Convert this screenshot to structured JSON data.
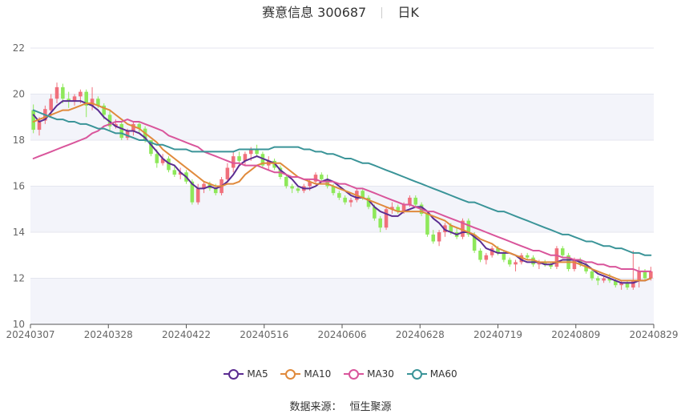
{
  "header": {
    "title": "赛意信息 300687",
    "period": "日K"
  },
  "source": {
    "label": "数据来源：",
    "value": "恒生聚源"
  },
  "chart_data": {
    "type": "candlestick",
    "title": "赛意信息 300687",
    "ylim": [
      10,
      22
    ],
    "yticks": [
      10,
      12,
      14,
      16,
      18,
      20,
      22
    ],
    "x_tick_labels": [
      "20240307",
      "20240328",
      "20240422",
      "20240516",
      "20240606",
      "20240628",
      "20240719",
      "20240809",
      "20240829"
    ],
    "grid": true,
    "legend_position": "bottom-center",
    "up_color": "#f0707c",
    "down_color": "#8ee85a",
    "candles_ohlc": [
      [
        19.3,
        19.55,
        18.3,
        18.45
      ],
      [
        18.45,
        19.0,
        18.2,
        18.85
      ],
      [
        18.85,
        19.5,
        18.7,
        19.35
      ],
      [
        19.3,
        20.0,
        19.0,
        19.8
      ],
      [
        19.8,
        20.5,
        19.6,
        20.3
      ],
      [
        20.3,
        20.45,
        19.6,
        19.8
      ],
      [
        19.8,
        20.1,
        19.4,
        19.7
      ],
      [
        19.7,
        20.0,
        19.5,
        19.9
      ],
      [
        19.9,
        20.2,
        19.6,
        20.1
      ],
      [
        20.1,
        20.2,
        19.0,
        19.5
      ],
      [
        19.5,
        20.3,
        19.3,
        19.8
      ],
      [
        19.8,
        19.9,
        19.4,
        19.5
      ],
      [
        19.5,
        19.6,
        18.9,
        19.1
      ],
      [
        19.1,
        19.3,
        18.4,
        18.6
      ],
      [
        18.6,
        18.9,
        18.5,
        18.7
      ],
      [
        18.7,
        18.8,
        18.0,
        18.1
      ],
      [
        18.1,
        18.5,
        18.0,
        18.4
      ],
      [
        18.4,
        18.8,
        18.2,
        18.7
      ],
      [
        18.7,
        18.8,
        18.3,
        18.5
      ],
      [
        18.5,
        18.6,
        17.9,
        18.0
      ],
      [
        18.0,
        18.0,
        17.3,
        17.4
      ],
      [
        17.4,
        17.6,
        16.8,
        17.0
      ],
      [
        17.0,
        17.4,
        16.9,
        17.2
      ],
      [
        17.2,
        17.3,
        16.6,
        16.7
      ],
      [
        16.7,
        16.9,
        16.4,
        16.5
      ],
      [
        16.5,
        16.8,
        16.3,
        16.6
      ],
      [
        16.6,
        16.7,
        16.1,
        16.2
      ],
      [
        16.2,
        16.3,
        15.2,
        15.3
      ],
      [
        15.3,
        16.1,
        15.2,
        15.9
      ],
      [
        15.9,
        16.2,
        15.7,
        16.1
      ],
      [
        16.1,
        16.2,
        15.8,
        15.9
      ],
      [
        15.9,
        16.1,
        15.6,
        15.7
      ],
      [
        15.7,
        16.4,
        15.6,
        16.3
      ],
      [
        16.3,
        17.0,
        16.2,
        16.8
      ],
      [
        16.8,
        17.5,
        16.6,
        17.3
      ],
      [
        17.3,
        17.5,
        17.0,
        17.1
      ],
      [
        17.1,
        17.5,
        16.9,
        17.4
      ],
      [
        17.4,
        17.7,
        17.1,
        17.6
      ],
      [
        17.6,
        17.8,
        17.3,
        17.4
      ],
      [
        17.4,
        17.5,
        16.8,
        16.9
      ],
      [
        16.9,
        17.3,
        16.7,
        17.1
      ],
      [
        17.1,
        17.2,
        16.7,
        16.8
      ],
      [
        16.8,
        16.9,
        16.3,
        16.4
      ],
      [
        16.4,
        16.5,
        15.9,
        16.0
      ],
      [
        16.0,
        16.1,
        15.7,
        15.9
      ],
      [
        15.9,
        16.0,
        15.7,
        15.8
      ],
      [
        15.8,
        16.1,
        15.7,
        16.0
      ],
      [
        16.0,
        16.3,
        15.8,
        16.2
      ],
      [
        16.2,
        16.6,
        16.1,
        16.5
      ],
      [
        16.5,
        16.6,
        16.2,
        16.3
      ],
      [
        16.3,
        16.5,
        15.9,
        16.0
      ],
      [
        16.0,
        16.1,
        15.6,
        15.7
      ],
      [
        15.7,
        15.8,
        15.4,
        15.5
      ],
      [
        15.5,
        15.6,
        15.2,
        15.3
      ],
      [
        15.3,
        15.5,
        15.1,
        15.4
      ],
      [
        15.4,
        15.9,
        15.3,
        15.8
      ],
      [
        15.8,
        15.9,
        15.4,
        15.5
      ],
      [
        15.5,
        15.6,
        15.0,
        15.1
      ],
      [
        15.1,
        15.2,
        14.5,
        14.6
      ],
      [
        14.6,
        14.7,
        14.0,
        14.2
      ],
      [
        14.2,
        15.1,
        14.1,
        15.0
      ],
      [
        15.0,
        15.3,
        14.8,
        15.1
      ],
      [
        15.1,
        15.2,
        14.8,
        14.9
      ],
      [
        14.9,
        15.3,
        14.8,
        15.2
      ],
      [
        15.2,
        15.6,
        15.1,
        15.5
      ],
      [
        15.5,
        15.6,
        15.1,
        15.2
      ],
      [
        15.2,
        15.3,
        14.7,
        14.8
      ],
      [
        14.8,
        14.9,
        13.8,
        13.9
      ],
      [
        13.9,
        14.1,
        13.5,
        13.6
      ],
      [
        13.6,
        14.1,
        13.4,
        14.0
      ],
      [
        14.0,
        14.4,
        13.8,
        14.3
      ],
      [
        14.3,
        14.4,
        13.9,
        14.0
      ],
      [
        14.0,
        14.2,
        13.7,
        13.8
      ],
      [
        13.8,
        14.6,
        13.7,
        14.5
      ],
      [
        14.5,
        14.6,
        13.8,
        13.9
      ],
      [
        13.9,
        14.0,
        13.1,
        13.2
      ],
      [
        13.2,
        13.3,
        12.7,
        12.8
      ],
      [
        12.8,
        13.1,
        12.6,
        13.0
      ],
      [
        13.0,
        13.4,
        12.9,
        13.3
      ],
      [
        13.3,
        13.4,
        13.0,
        13.1
      ],
      [
        13.1,
        13.2,
        12.7,
        12.8
      ],
      [
        12.8,
        12.9,
        12.5,
        12.6
      ],
      [
        12.6,
        12.8,
        12.3,
        12.7
      ],
      [
        12.7,
        13.1,
        12.6,
        13.0
      ],
      [
        13.0,
        13.1,
        12.8,
        12.9
      ],
      [
        12.9,
        13.0,
        12.5,
        12.6
      ],
      [
        12.6,
        12.8,
        12.4,
        12.7
      ],
      [
        12.7,
        12.8,
        12.5,
        12.6
      ],
      [
        12.6,
        12.7,
        12.4,
        12.5
      ],
      [
        12.5,
        13.4,
        12.4,
        13.3
      ],
      [
        13.3,
        13.4,
        12.9,
        13.0
      ],
      [
        13.0,
        13.1,
        12.3,
        12.4
      ],
      [
        12.4,
        12.9,
        12.3,
        12.8
      ],
      [
        12.8,
        12.9,
        12.5,
        12.6
      ],
      [
        12.6,
        12.7,
        12.2,
        12.3
      ],
      [
        12.3,
        12.4,
        11.9,
        12.0
      ],
      [
        12.0,
        12.1,
        11.7,
        11.9
      ],
      [
        11.9,
        12.1,
        11.8,
        12.0
      ],
      [
        12.0,
        12.2,
        11.8,
        11.9
      ],
      [
        11.9,
        12.0,
        11.6,
        11.7
      ],
      [
        11.7,
        11.9,
        11.5,
        11.8
      ],
      [
        11.8,
        11.9,
        11.5,
        11.6
      ],
      [
        11.6,
        13.2,
        11.5,
        11.9
      ],
      [
        11.9,
        12.5,
        11.6,
        12.3
      ],
      [
        12.3,
        12.4,
        11.9,
        12.0
      ],
      [
        12.0,
        12.5,
        11.9,
        12.3
      ]
    ],
    "series": [
      {
        "name": "MA5",
        "color": "#5b2c91",
        "values": [
          19.1,
          18.8,
          18.9,
          19.2,
          19.5,
          19.7,
          19.7,
          19.7,
          19.7,
          19.6,
          19.5,
          19.3,
          19.0,
          18.8,
          18.6,
          18.5,
          18.4,
          18.4,
          18.3,
          18.1,
          17.8,
          17.5,
          17.2,
          17.0,
          16.9,
          16.6,
          16.4,
          16.1,
          15.9,
          15.9,
          16.0,
          15.9,
          16.0,
          16.2,
          16.5,
          16.9,
          17.1,
          17.2,
          17.3,
          17.2,
          17.1,
          17.0,
          16.7,
          16.5,
          16.3,
          16.0,
          15.9,
          15.9,
          16.0,
          16.2,
          16.3,
          16.2,
          16.0,
          15.8,
          15.6,
          15.5,
          15.5,
          15.4,
          15.1,
          14.9,
          14.8,
          14.7,
          14.7,
          14.9,
          15.0,
          15.1,
          15.1,
          14.9,
          14.6,
          14.4,
          14.1,
          14.0,
          13.9,
          14.0,
          14.0,
          13.8,
          13.6,
          13.3,
          13.2,
          13.1,
          13.1,
          13.1,
          13.0,
          12.8,
          12.7,
          12.7,
          12.7,
          12.6,
          12.6,
          12.7,
          12.8,
          12.8,
          12.8,
          12.7,
          12.6,
          12.4,
          12.2,
          12.1,
          12.0,
          11.9,
          11.8,
          11.8,
          11.8,
          11.9,
          11.9,
          12.0
        ]
      },
      {
        "name": "MA10",
        "color": "#e08a3c",
        "values": [
          18.8,
          18.9,
          19.0,
          19.1,
          19.2,
          19.3,
          19.3,
          19.4,
          19.5,
          19.6,
          19.6,
          19.5,
          19.4,
          19.3,
          19.1,
          18.9,
          18.7,
          18.6,
          18.5,
          18.3,
          18.1,
          17.9,
          17.6,
          17.4,
          17.2,
          17.0,
          16.8,
          16.6,
          16.4,
          16.2,
          16.1,
          16.0,
          16.0,
          16.1,
          16.1,
          16.2,
          16.5,
          16.7,
          16.9,
          17.0,
          17.0,
          17.0,
          17.0,
          16.8,
          16.6,
          16.4,
          16.3,
          16.2,
          16.1,
          16.1,
          16.1,
          16.0,
          15.9,
          15.8,
          15.7,
          15.6,
          15.5,
          15.4,
          15.3,
          15.2,
          15.1,
          15.0,
          14.9,
          14.9,
          14.9,
          14.9,
          14.9,
          14.8,
          14.7,
          14.6,
          14.5,
          14.3,
          14.2,
          14.1,
          14.0,
          13.9,
          13.7,
          13.6,
          13.5,
          13.3,
          13.2,
          13.1,
          13.0,
          12.9,
          12.8,
          12.8,
          12.7,
          12.7,
          12.7,
          12.7,
          12.7,
          12.7,
          12.7,
          12.6,
          12.5,
          12.4,
          12.3,
          12.2,
          12.1,
          12.0,
          11.9,
          11.9,
          11.9,
          11.9,
          11.9,
          12.0
        ]
      },
      {
        "name": "MA30",
        "color": "#d9559b",
        "values": [
          17.2,
          17.3,
          17.4,
          17.5,
          17.6,
          17.7,
          17.8,
          17.9,
          18.0,
          18.1,
          18.3,
          18.4,
          18.6,
          18.7,
          18.8,
          18.8,
          18.9,
          18.8,
          18.8,
          18.7,
          18.6,
          18.5,
          18.4,
          18.2,
          18.1,
          18.0,
          17.9,
          17.8,
          17.7,
          17.5,
          17.4,
          17.3,
          17.2,
          17.1,
          17.0,
          17.0,
          16.9,
          16.9,
          16.9,
          16.8,
          16.7,
          16.6,
          16.6,
          16.5,
          16.4,
          16.4,
          16.3,
          16.3,
          16.3,
          16.2,
          16.2,
          16.2,
          16.1,
          16.1,
          16.0,
          15.9,
          15.9,
          15.8,
          15.7,
          15.6,
          15.5,
          15.4,
          15.3,
          15.2,
          15.2,
          15.1,
          15.0,
          14.9,
          14.9,
          14.8,
          14.7,
          14.6,
          14.5,
          14.4,
          14.3,
          14.2,
          14.1,
          14.0,
          13.9,
          13.8,
          13.7,
          13.6,
          13.5,
          13.4,
          13.3,
          13.2,
          13.2,
          13.1,
          13.0,
          13.0,
          12.9,
          12.9,
          12.8,
          12.8,
          12.7,
          12.7,
          12.6,
          12.6,
          12.5,
          12.5,
          12.4,
          12.4,
          12.4,
          12.3,
          12.3,
          12.3
        ]
      },
      {
        "name": "MA60",
        "color": "#3a9498",
        "values": [
          19.3,
          19.2,
          19.1,
          19.0,
          18.9,
          18.9,
          18.8,
          18.8,
          18.7,
          18.7,
          18.6,
          18.5,
          18.5,
          18.4,
          18.3,
          18.3,
          18.2,
          18.1,
          18.0,
          18.0,
          17.9,
          17.8,
          17.8,
          17.7,
          17.6,
          17.6,
          17.6,
          17.5,
          17.5,
          17.5,
          17.5,
          17.5,
          17.5,
          17.5,
          17.5,
          17.6,
          17.6,
          17.6,
          17.6,
          17.6,
          17.6,
          17.7,
          17.7,
          17.7,
          17.7,
          17.7,
          17.6,
          17.6,
          17.5,
          17.5,
          17.4,
          17.4,
          17.3,
          17.2,
          17.2,
          17.1,
          17.0,
          17.0,
          16.9,
          16.8,
          16.7,
          16.6,
          16.5,
          16.4,
          16.3,
          16.2,
          16.1,
          16.0,
          15.9,
          15.8,
          15.7,
          15.6,
          15.5,
          15.4,
          15.3,
          15.3,
          15.2,
          15.1,
          15.0,
          14.9,
          14.9,
          14.8,
          14.7,
          14.6,
          14.5,
          14.4,
          14.3,
          14.2,
          14.1,
          14.0,
          13.9,
          13.9,
          13.8,
          13.7,
          13.6,
          13.6,
          13.5,
          13.4,
          13.4,
          13.3,
          13.3,
          13.2,
          13.1,
          13.1,
          13.0,
          13.0
        ]
      }
    ]
  }
}
